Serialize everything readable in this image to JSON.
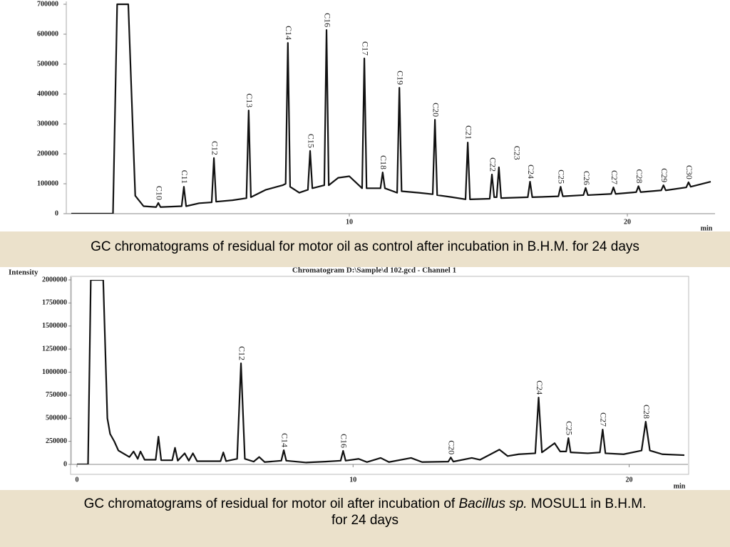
{
  "chart_data": [
    {
      "type": "line",
      "xlim": [
        0,
        23
      ],
      "ylim": [
        0,
        700000
      ],
      "xticks": [
        10,
        20
      ],
      "yticks": [
        0,
        100000,
        200000,
        300000,
        400000,
        500000,
        600000,
        700000
      ],
      "xlabel": "min",
      "series": [
        {
          "color": "#111",
          "x": [
            0,
            1.5,
            1.65,
            2.05,
            2.3,
            2.6,
            3.05,
            3.13,
            3.21,
            3.97,
            4.05,
            4.13,
            4.6,
            5.05,
            5.13,
            5.21,
            5.8,
            6.3,
            6.38,
            6.46,
            7.0,
            7.6,
            7.71,
            7.79,
            7.87,
            8.2,
            8.51,
            8.59,
            8.67,
            9.1,
            9.18,
            9.26,
            9.6,
            10.0,
            10.46,
            10.54,
            10.62,
            11.12,
            11.2,
            11.28,
            11.72,
            11.8,
            11.88,
            12.5,
            13.0,
            13.08,
            13.16,
            13.7,
            14.18,
            14.26,
            14.34,
            15.05,
            15.13,
            15.21,
            15.3,
            15.38,
            15.46,
            16.42,
            16.5,
            16.58,
            17.52,
            17.6,
            17.68,
            18.42,
            18.5,
            18.58,
            19.42,
            19.5,
            19.58,
            20.32,
            20.4,
            20.48,
            21.22,
            21.3,
            21.38,
            22.12,
            22.2,
            22.28,
            23
          ],
          "values": [
            0,
            0,
            700000,
            700000,
            60000,
            25000,
            22000,
            36000,
            22000,
            25000,
            90000,
            25000,
            35000,
            38000,
            186000,
            40000,
            45000,
            52000,
            345000,
            55000,
            80000,
            95000,
            100000,
            571000,
            90000,
            70000,
            80000,
            210000,
            85000,
            95000,
            614000,
            95000,
            120000,
            125000,
            85000,
            519000,
            85000,
            85000,
            138000,
            85000,
            70000,
            421000,
            75000,
            70000,
            65000,
            314000,
            62000,
            55000,
            48000,
            238000,
            48000,
            50000,
            131000,
            55000,
            55000,
            155000,
            52000,
            55000,
            107000,
            55000,
            58000,
            90000,
            58000,
            62000,
            86000,
            62000,
            66000,
            88000,
            66000,
            72000,
            92000,
            72000,
            78000,
            95000,
            78000,
            88000,
            105000,
            90000,
            107000
          ]
        }
      ],
      "annotations": [
        {
          "text": "C10",
          "x": 3.13,
          "y": 36000
        },
        {
          "text": "C11",
          "x": 4.05,
          "y": 90000
        },
        {
          "text": "C12",
          "x": 5.13,
          "y": 186000
        },
        {
          "text": "C13",
          "x": 6.38,
          "y": 345000
        },
        {
          "text": "C14",
          "x": 7.79,
          "y": 571000
        },
        {
          "text": "C15",
          "x": 8.59,
          "y": 210000
        },
        {
          "text": "C16",
          "x": 9.18,
          "y": 614000
        },
        {
          "text": "C17",
          "x": 10.54,
          "y": 519000
        },
        {
          "text": "C18",
          "x": 11.2,
          "y": 138000
        },
        {
          "text": "C19",
          "x": 11.8,
          "y": 421000
        },
        {
          "text": "C20",
          "x": 13.08,
          "y": 314000
        },
        {
          "text": "C21",
          "x": 14.26,
          "y": 238000
        },
        {
          "text": "C22",
          "x": 15.13,
          "y": 131000
        },
        {
          "text": "C23",
          "x": 16.0,
          "y": 170000
        },
        {
          "text": "C24",
          "x": 16.5,
          "y": 107000
        },
        {
          "text": "C25",
          "x": 17.6,
          "y": 90000
        },
        {
          "text": "C26",
          "x": 18.5,
          "y": 86000
        },
        {
          "text": "C27",
          "x": 19.5,
          "y": 88000
        },
        {
          "text": "C28",
          "x": 20.4,
          "y": 92000
        },
        {
          "text": "C29",
          "x": 21.3,
          "y": 95000
        },
        {
          "text": "C30",
          "x": 22.2,
          "y": 105000
        }
      ],
      "caption": "GC chromatograms of residual for motor oil as control after incubation in B.H.M. for 24 days"
    },
    {
      "type": "line",
      "subtitle": "Chromatogram D:\\Sample\\d 102.gcd - Channel 1",
      "ylabel": "Intensity",
      "xlim": [
        0,
        22
      ],
      "ylim": [
        0,
        2000000
      ],
      "xticks": [
        0,
        10,
        20
      ],
      "yticks": [
        0,
        250000,
        500000,
        750000,
        1000000,
        1250000,
        1500000,
        1750000,
        2000000
      ],
      "xlabel": "min",
      "series": [
        {
          "color": "#111",
          "x": [
            0,
            0.4,
            0.5,
            0.95,
            1.1,
            1.2,
            1.35,
            1.5,
            1.9,
            2.05,
            2.2,
            2.3,
            2.45,
            2.85,
            2.95,
            3.05,
            3.45,
            3.55,
            3.65,
            3.9,
            4.05,
            4.2,
            4.35,
            5.2,
            5.3,
            5.4,
            5.8,
            5.94,
            6.08,
            6.4,
            6.6,
            6.8,
            7.4,
            7.49,
            7.58,
            8.3,
            9.0,
            9.55,
            9.64,
            9.73,
            10.2,
            10.5,
            11.0,
            11.3,
            12.1,
            12.5,
            13.45,
            13.54,
            13.63,
            14.3,
            14.6,
            15.3,
            15.6,
            16.0,
            16.6,
            16.72,
            16.84,
            17.3,
            17.5,
            17.72,
            17.8,
            17.88,
            18.5,
            18.94,
            19.04,
            19.14,
            19.8,
            20.45,
            20.6,
            20.75,
            21.2,
            22.0
          ],
          "values": [
            0,
            0,
            2000000,
            2000000,
            500000,
            330000,
            250000,
            150000,
            80000,
            140000,
            60000,
            140000,
            50000,
            50000,
            300000,
            45000,
            45000,
            180000,
            40000,
            120000,
            40000,
            120000,
            35000,
            35000,
            130000,
            35000,
            60000,
            1096000,
            60000,
            30000,
            80000,
            25000,
            40000,
            154000,
            40000,
            20000,
            30000,
            40000,
            147000,
            40000,
            60000,
            25000,
            70000,
            25000,
            70000,
            25000,
            30000,
            75000,
            30000,
            70000,
            50000,
            160000,
            90000,
            110000,
            120000,
            725000,
            130000,
            230000,
            140000,
            140000,
            285000,
            130000,
            120000,
            130000,
            378000,
            120000,
            110000,
            150000,
            463000,
            150000,
            110000,
            100000
          ]
        }
      ],
      "annotations": [
        {
          "text": "C12",
          "x": 5.94,
          "y": 1096000
        },
        {
          "text": "C14",
          "x": 7.49,
          "y": 154000
        },
        {
          "text": "C16",
          "x": 9.64,
          "y": 147000
        },
        {
          "text": "C20",
          "x": 13.54,
          "y": 75000
        },
        {
          "text": "C24",
          "x": 16.72,
          "y": 725000
        },
        {
          "text": "C25",
          "x": 17.8,
          "y": 285000
        },
        {
          "text": "C27",
          "x": 19.04,
          "y": 378000
        },
        {
          "text": "C28",
          "x": 20.6,
          "y": 463000
        }
      ],
      "caption_parts": [
        "GC chromatograms of residual for motor oil after incubation of ",
        "Bacillus sp.",
        " MOSUL1 in B.H.M.",
        "for 24 days"
      ]
    }
  ]
}
